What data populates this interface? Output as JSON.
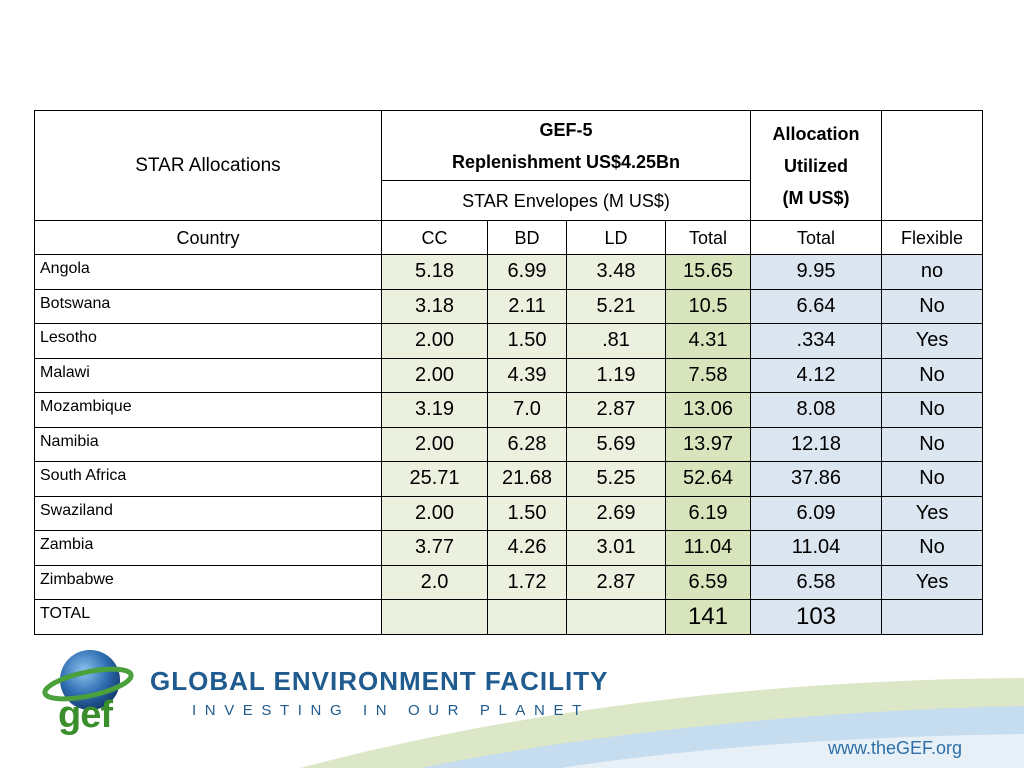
{
  "table": {
    "title_cell": "STAR Allocations",
    "gef_header_line1": "GEF-5",
    "gef_header_line2": "Replenishment US$4.25Bn",
    "envelopes_header": "STAR Envelopes (M US$)",
    "allocation_header_line1": "Allocation",
    "allocation_header_line2": "Utilized",
    "allocation_header_line3": "(M US$)",
    "columns": {
      "country": "Country",
      "cc": "CC",
      "bd": "BD",
      "ld": "LD",
      "total": "Total",
      "utilized_total": "Total",
      "flexible": "Flexible"
    },
    "rows": [
      {
        "country": "Angola",
        "cc": "5.18",
        "bd": "6.99",
        "ld": "3.48",
        "total": "15.65",
        "utilized": "9.95",
        "flexible": "no"
      },
      {
        "country": "Botswana",
        "cc": "3.18",
        "bd": "2.11",
        "ld": "5.21",
        "total": "10.5",
        "utilized": "6.64",
        "flexible": "No"
      },
      {
        "country": "Lesotho",
        "cc": "2.00",
        "bd": "1.50",
        "ld": ".81",
        "total": "4.31",
        "utilized": ".334",
        "flexible": "Yes"
      },
      {
        "country": "Malawi",
        "cc": "2.00",
        "bd": "4.39",
        "ld": "1.19",
        "total": "7.58",
        "utilized": "4.12",
        "flexible": "No"
      },
      {
        "country": "Mozambique",
        "cc": "3.19",
        "bd": "7.0",
        "ld": "2.87",
        "total": "13.06",
        "utilized": "8.08",
        "flexible": "No"
      },
      {
        "country": "Namibia",
        "cc": "2.00",
        "bd": "6.28",
        "ld": "5.69",
        "total": "13.97",
        "utilized": "12.18",
        "flexible": "No"
      },
      {
        "country": "South Africa",
        "cc": "25.71",
        "bd": "21.68",
        "ld": "5.25",
        "total": "52.64",
        "utilized": "37.86",
        "flexible": "No"
      },
      {
        "country": "Swaziland",
        "cc": "2.00",
        "bd": "1.50",
        "ld": "2.69",
        "total": "6.19",
        "utilized": "6.09",
        "flexible": "Yes"
      },
      {
        "country": "Zambia",
        "cc": "3.77",
        "bd": "4.26",
        "ld": "3.01",
        "total": "11.04",
        "utilized": "11.04",
        "flexible": "No"
      },
      {
        "country": "Zimbabwe",
        "cc": "2.0",
        "bd": "1.72",
        "ld": "2.87",
        "total": "6.59",
        "utilized": "6.58",
        "flexible": "Yes"
      }
    ],
    "total_row": {
      "label": "TOTAL",
      "total": "141",
      "utilized": "103"
    }
  },
  "footer": {
    "logo_text": "gef",
    "org_name": "GLOBAL ENVIRONMENT FACILITY",
    "tagline": "INVESTING IN OUR PLANET",
    "website": "www.theGEF.org"
  },
  "colors": {
    "green_light": "#ebf1de",
    "green_dark": "#d8e4bc",
    "blue_light": "#dce6f1",
    "brand_blue": "#1f5b8e",
    "brand_green": "#3a8f2c"
  }
}
